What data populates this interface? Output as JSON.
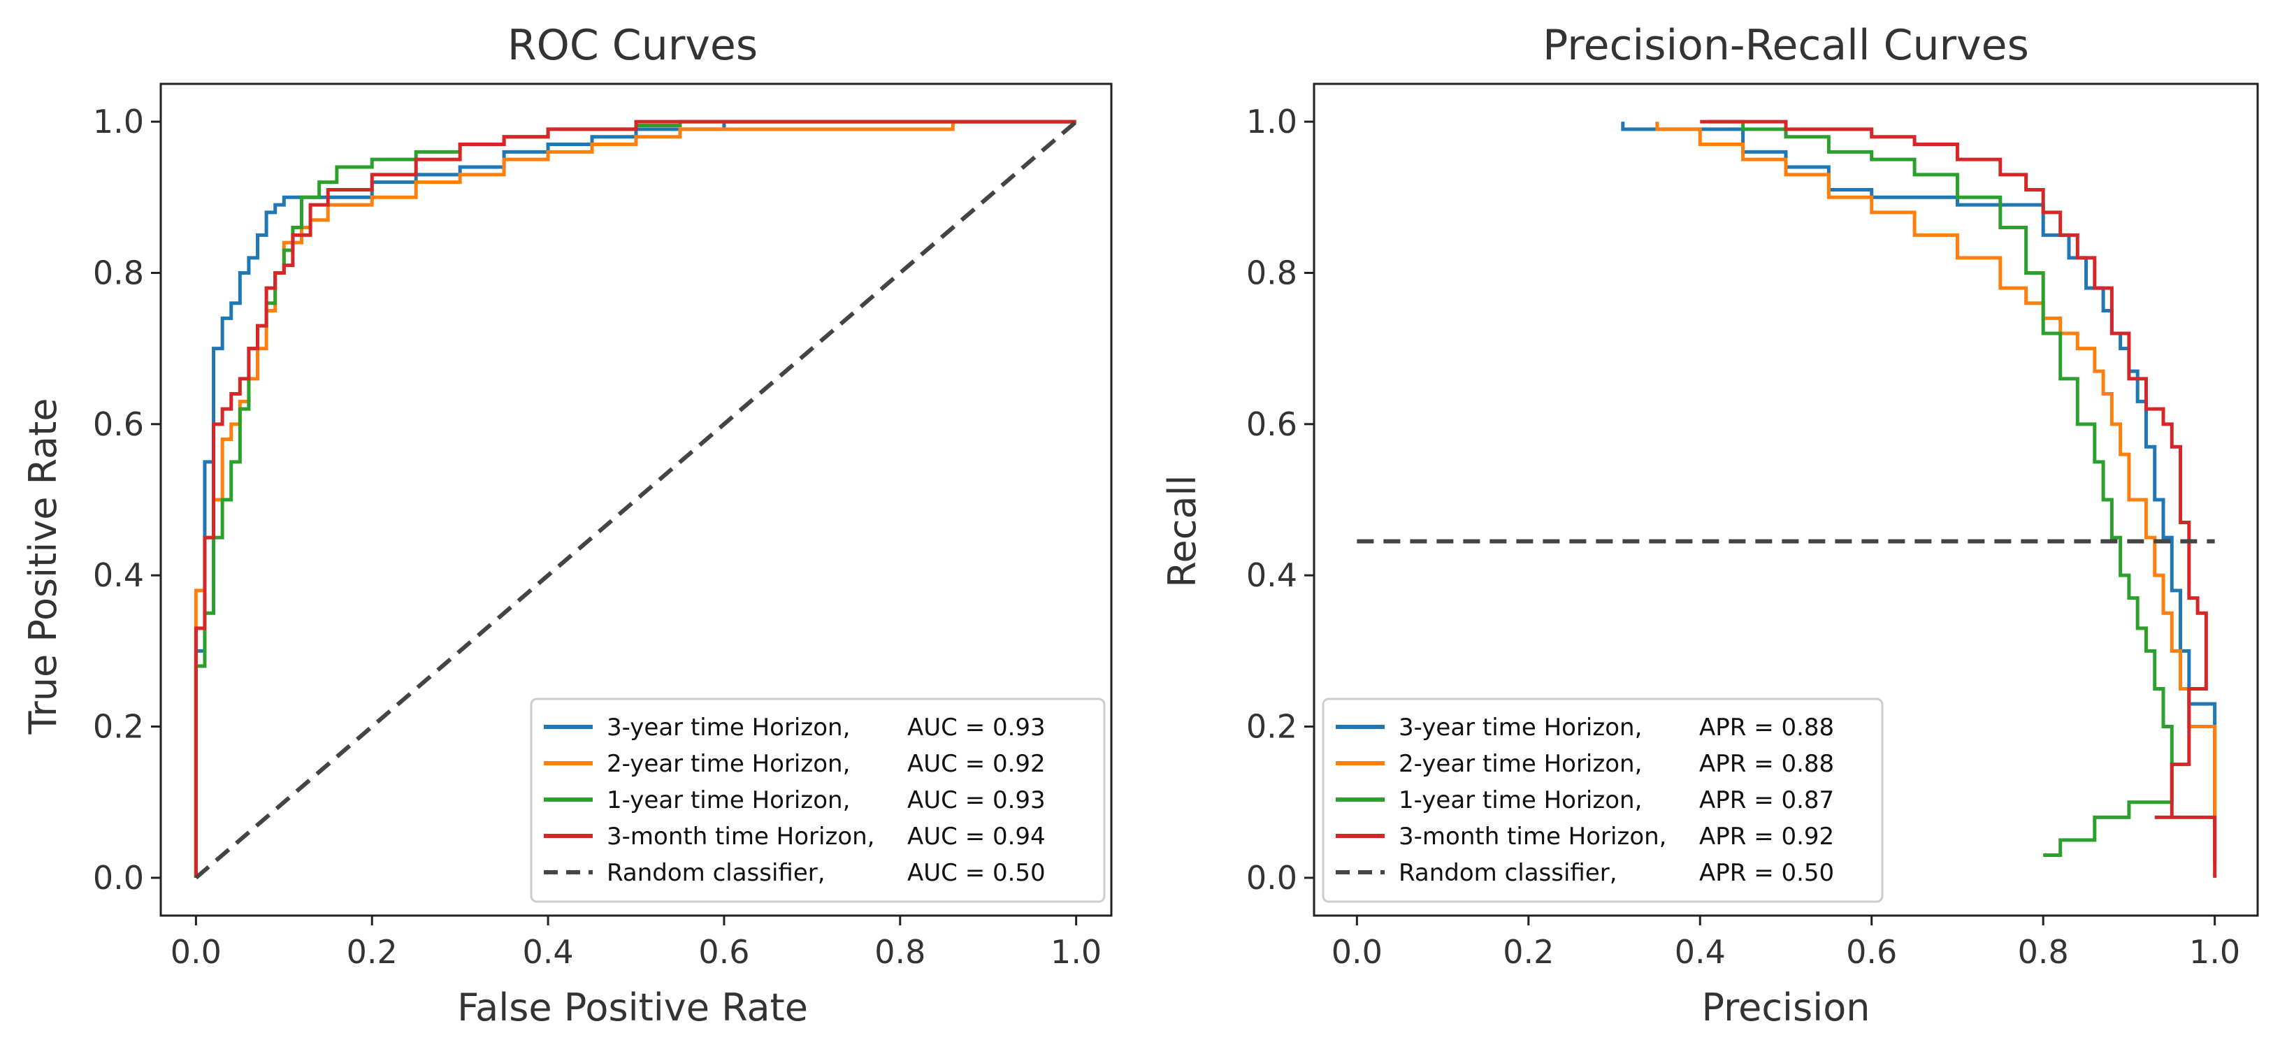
{
  "chart_data": [
    {
      "type": "line",
      "title": "ROC Curves",
      "xlabel": "False Positive Rate",
      "ylabel": "True Positive Rate",
      "xlim": [
        -0.04,
        1.04
      ],
      "ylim": [
        -0.05,
        1.05
      ],
      "xticks": [
        "0.0",
        "0.2",
        "0.4",
        "0.6",
        "0.8",
        "1.0"
      ],
      "yticks": [
        "0.0",
        "0.2",
        "0.4",
        "0.6",
        "0.8",
        "1.0"
      ],
      "legend_position": "lower-right",
      "series": [
        {
          "name": "3-year time Horizon,",
          "metric": "AUC = 0.93",
          "color": "#1f77b4",
          "x": [
            0,
            0,
            0.01,
            0.01,
            0.02,
            0.02,
            0.03,
            0.03,
            0.04,
            0.05,
            0.05,
            0.06,
            0.07,
            0.08,
            0.09,
            0.1,
            0.11,
            0.15,
            0.2,
            0.25,
            0.3,
            0.35,
            0.4,
            0.45,
            0.5,
            0.6,
            0.7,
            1.0
          ],
          "y": [
            0,
            0.23,
            0.3,
            0.47,
            0.55,
            0.65,
            0.7,
            0.72,
            0.74,
            0.76,
            0.78,
            0.8,
            0.82,
            0.85,
            0.88,
            0.89,
            0.9,
            0.9,
            0.9,
            0.92,
            0.93,
            0.94,
            0.96,
            0.97,
            0.98,
            0.99,
            1.0,
            1.0
          ]
        },
        {
          "name": "2-year time Horizon,",
          "metric": "AUC = 0.92",
          "color": "#ff7f0e",
          "x": [
            0,
            0,
            0.01,
            0.02,
            0.03,
            0.03,
            0.04,
            0.05,
            0.06,
            0.07,
            0.08,
            0.09,
            0.1,
            0.12,
            0.13,
            0.15,
            0.2,
            0.25,
            0.3,
            0.35,
            0.4,
            0.45,
            0.5,
            0.55,
            0.6,
            0.7,
            0.8,
            0.86,
            1.0
          ],
          "y": [
            0,
            0.22,
            0.38,
            0.45,
            0.5,
            0.55,
            0.58,
            0.6,
            0.63,
            0.66,
            0.7,
            0.75,
            0.8,
            0.84,
            0.86,
            0.87,
            0.89,
            0.9,
            0.92,
            0.93,
            0.95,
            0.96,
            0.97,
            0.98,
            0.99,
            0.99,
            0.99,
            0.99,
            1.0
          ]
        },
        {
          "name": "1-year time Horizon,",
          "metric": "AUC = 0.93",
          "color": "#2ca02c",
          "x": [
            0,
            0,
            0.01,
            0.02,
            0.02,
            0.03,
            0.04,
            0.05,
            0.06,
            0.07,
            0.08,
            0.09,
            0.1,
            0.11,
            0.12,
            0.14,
            0.16,
            0.2,
            0.25,
            0.3,
            0.35,
            0.4,
            0.5,
            0.55,
            0.6,
            0.7,
            1.0
          ],
          "y": [
            0,
            0.12,
            0.28,
            0.35,
            0.4,
            0.45,
            0.5,
            0.55,
            0.62,
            0.7,
            0.73,
            0.76,
            0.8,
            0.83,
            0.86,
            0.9,
            0.92,
            0.94,
            0.95,
            0.96,
            0.97,
            0.98,
            0.99,
            0.995,
            1.0,
            1.0,
            1.0
          ]
        },
        {
          "name": "3-month time Horizon,",
          "metric": "AUC = 0.94",
          "color": "#d62728",
          "x": [
            0,
            0,
            0.01,
            0.01,
            0.02,
            0.02,
            0.03,
            0.04,
            0.05,
            0.06,
            0.07,
            0.08,
            0.09,
            0.1,
            0.11,
            0.13,
            0.15,
            0.2,
            0.25,
            0.3,
            0.35,
            0.4,
            0.5,
            0.6,
            0.7,
            1.0
          ],
          "y": [
            0,
            0.1,
            0.33,
            0.4,
            0.45,
            0.55,
            0.6,
            0.62,
            0.64,
            0.66,
            0.7,
            0.73,
            0.78,
            0.8,
            0.81,
            0.85,
            0.89,
            0.91,
            0.93,
            0.95,
            0.97,
            0.98,
            0.99,
            1.0,
            1.0,
            1.0
          ]
        },
        {
          "name": "Random classifier,",
          "metric": "AUC = 0.50",
          "color": "#444444",
          "dashed": true,
          "x": [
            0,
            1
          ],
          "y": [
            0,
            1
          ]
        }
      ]
    },
    {
      "type": "line",
      "title": "Precision-Recall Curves",
      "xlabel": "Precision",
      "ylabel": "Recall",
      "xlim": [
        -0.05,
        1.05
      ],
      "ylim": [
        -0.05,
        1.05
      ],
      "xticks": [
        "0.0",
        "0.2",
        "0.4",
        "0.6",
        "0.8",
        "1.0"
      ],
      "yticks": [
        "0.0",
        "0.2",
        "0.4",
        "0.6",
        "0.8",
        "1.0"
      ],
      "legend_position": "lower-left",
      "series": [
        {
          "name": "3-year time Horizon,",
          "metric": "APR = 0.88",
          "color": "#1f77b4",
          "x": [
            0.31,
            0.45,
            0.5,
            0.55,
            0.6,
            0.65,
            0.7,
            0.75,
            0.8,
            0.83,
            0.85,
            0.87,
            0.88,
            0.89,
            0.9,
            0.91,
            0.92,
            0.93,
            0.94,
            0.95,
            0.96,
            0.97,
            0.98,
            1.0,
            1.0
          ],
          "y": [
            1.0,
            0.99,
            0.96,
            0.94,
            0.91,
            0.9,
            0.9,
            0.89,
            0.89,
            0.85,
            0.82,
            0.78,
            0.75,
            0.72,
            0.7,
            0.67,
            0.63,
            0.57,
            0.5,
            0.45,
            0.38,
            0.3,
            0.23,
            0.23,
            0.02
          ]
        },
        {
          "name": "2-year time Horizon,",
          "metric": "APR = 0.88",
          "color": "#ff7f0e",
          "x": [
            0.35,
            0.4,
            0.45,
            0.5,
            0.55,
            0.6,
            0.65,
            0.7,
            0.75,
            0.78,
            0.8,
            0.82,
            0.84,
            0.86,
            0.87,
            0.88,
            0.89,
            0.9,
            0.92,
            0.93,
            0.94,
            0.95,
            0.96,
            0.97,
            0.99,
            1.0,
            1.0,
            1.0
          ],
          "y": [
            1.0,
            0.99,
            0.97,
            0.95,
            0.93,
            0.9,
            0.88,
            0.85,
            0.82,
            0.78,
            0.76,
            0.74,
            0.72,
            0.7,
            0.67,
            0.64,
            0.6,
            0.56,
            0.5,
            0.45,
            0.4,
            0.35,
            0.3,
            0.25,
            0.2,
            0.2,
            0.08,
            0.02
          ]
        },
        {
          "name": "1-year time Horizon,",
          "metric": "APR = 0.87",
          "color": "#2ca02c",
          "x": [
            0.41,
            0.45,
            0.5,
            0.55,
            0.6,
            0.65,
            0.7,
            0.75,
            0.78,
            0.8,
            0.82,
            0.84,
            0.86,
            0.87,
            0.88,
            0.89,
            0.9,
            0.91,
            0.92,
            0.93,
            0.94,
            0.95,
            0.9,
            0.86,
            0.82,
            0.8
          ],
          "y": [
            1.0,
            1.0,
            0.99,
            0.98,
            0.96,
            0.95,
            0.93,
            0.9,
            0.86,
            0.8,
            0.72,
            0.66,
            0.6,
            0.55,
            0.5,
            0.45,
            0.4,
            0.37,
            0.33,
            0.3,
            0.25,
            0.2,
            0.1,
            0.08,
            0.05,
            0.03
          ]
        },
        {
          "name": "3-month time Horizon,",
          "metric": "APR = 0.92",
          "color": "#d62728",
          "x": [
            0.4,
            0.5,
            0.6,
            0.65,
            0.7,
            0.75,
            0.78,
            0.8,
            0.82,
            0.84,
            0.86,
            0.88,
            0.9,
            0.92,
            0.94,
            0.95,
            0.96,
            0.97,
            0.98,
            0.99,
            0.97,
            0.95,
            0.93,
            1.0,
            1.0
          ],
          "y": [
            1.0,
            1.0,
            0.99,
            0.98,
            0.97,
            0.95,
            0.93,
            0.91,
            0.88,
            0.85,
            0.82,
            0.78,
            0.72,
            0.66,
            0.62,
            0.6,
            0.57,
            0.47,
            0.37,
            0.35,
            0.25,
            0.15,
            0.08,
            0.08,
            0.0
          ]
        },
        {
          "name": "Random classifier,",
          "metric": "APR = 0.50",
          "color": "#444444",
          "dashed": true,
          "x": [
            0,
            1
          ],
          "y": [
            0.445,
            0.445
          ]
        }
      ]
    }
  ]
}
